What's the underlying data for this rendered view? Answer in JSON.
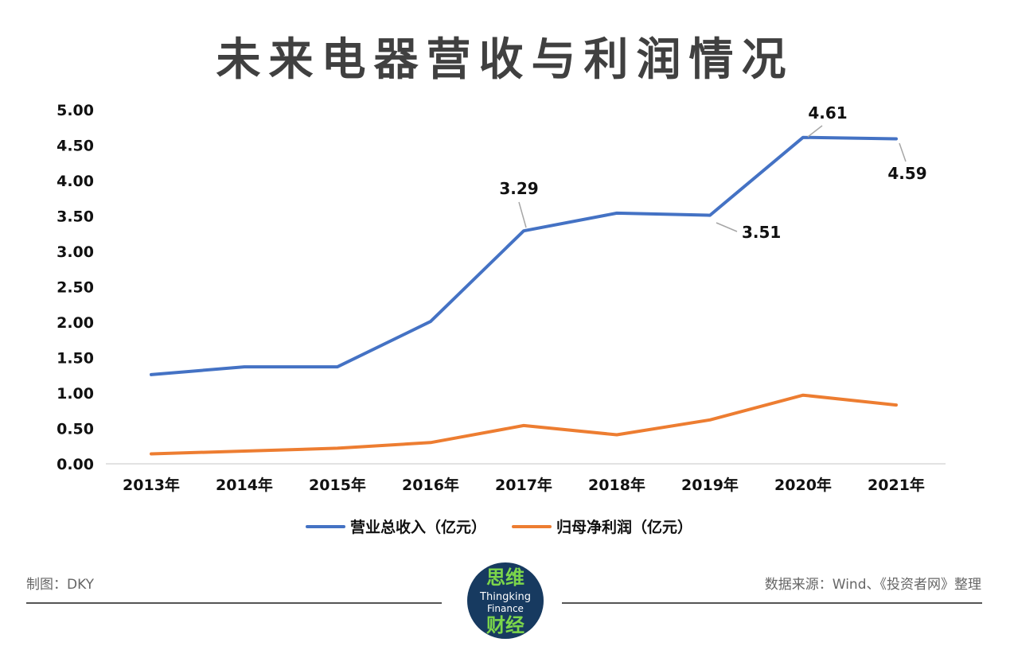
{
  "title": "未来电器营收与利润情况",
  "chart_data": {
    "type": "line",
    "title": "未来电器营收与利润情况",
    "categories": [
      "2013年",
      "2014年",
      "2015年",
      "2016年",
      "2017年",
      "2018年",
      "2019年",
      "2020年",
      "2021年"
    ],
    "series": [
      {
        "name": "营业总收入（亿元）",
        "color": "#4472c4",
        "values": [
          1.26,
          1.37,
          1.37,
          2.01,
          3.29,
          3.54,
          3.51,
          4.61,
          4.59
        ],
        "data_labels": [
          {
            "index": 4,
            "text": "3.29"
          },
          {
            "index": 6,
            "text": "3.51"
          },
          {
            "index": 7,
            "text": "4.61"
          },
          {
            "index": 8,
            "text": "4.59"
          }
        ]
      },
      {
        "name": "归母净利润（亿元）",
        "color": "#ed7d31",
        "values": [
          0.14,
          0.18,
          0.22,
          0.3,
          0.54,
          0.41,
          0.62,
          0.97,
          0.83
        ]
      }
    ],
    "y_ticks": [
      "0.00",
      "0.50",
      "1.00",
      "1.50",
      "2.00",
      "2.50",
      "3.00",
      "3.50",
      "4.00",
      "4.50",
      "5.00"
    ],
    "ylim": [
      0,
      5
    ],
    "grid": false,
    "legend": "bottom"
  },
  "footer": {
    "left": "制图：DKY",
    "right": "数据来源：Wind、《投资者网》整理",
    "logo": {
      "top": "思维",
      "en1": "Thingking",
      "en2": "Finance",
      "bottom": "财经"
    }
  }
}
